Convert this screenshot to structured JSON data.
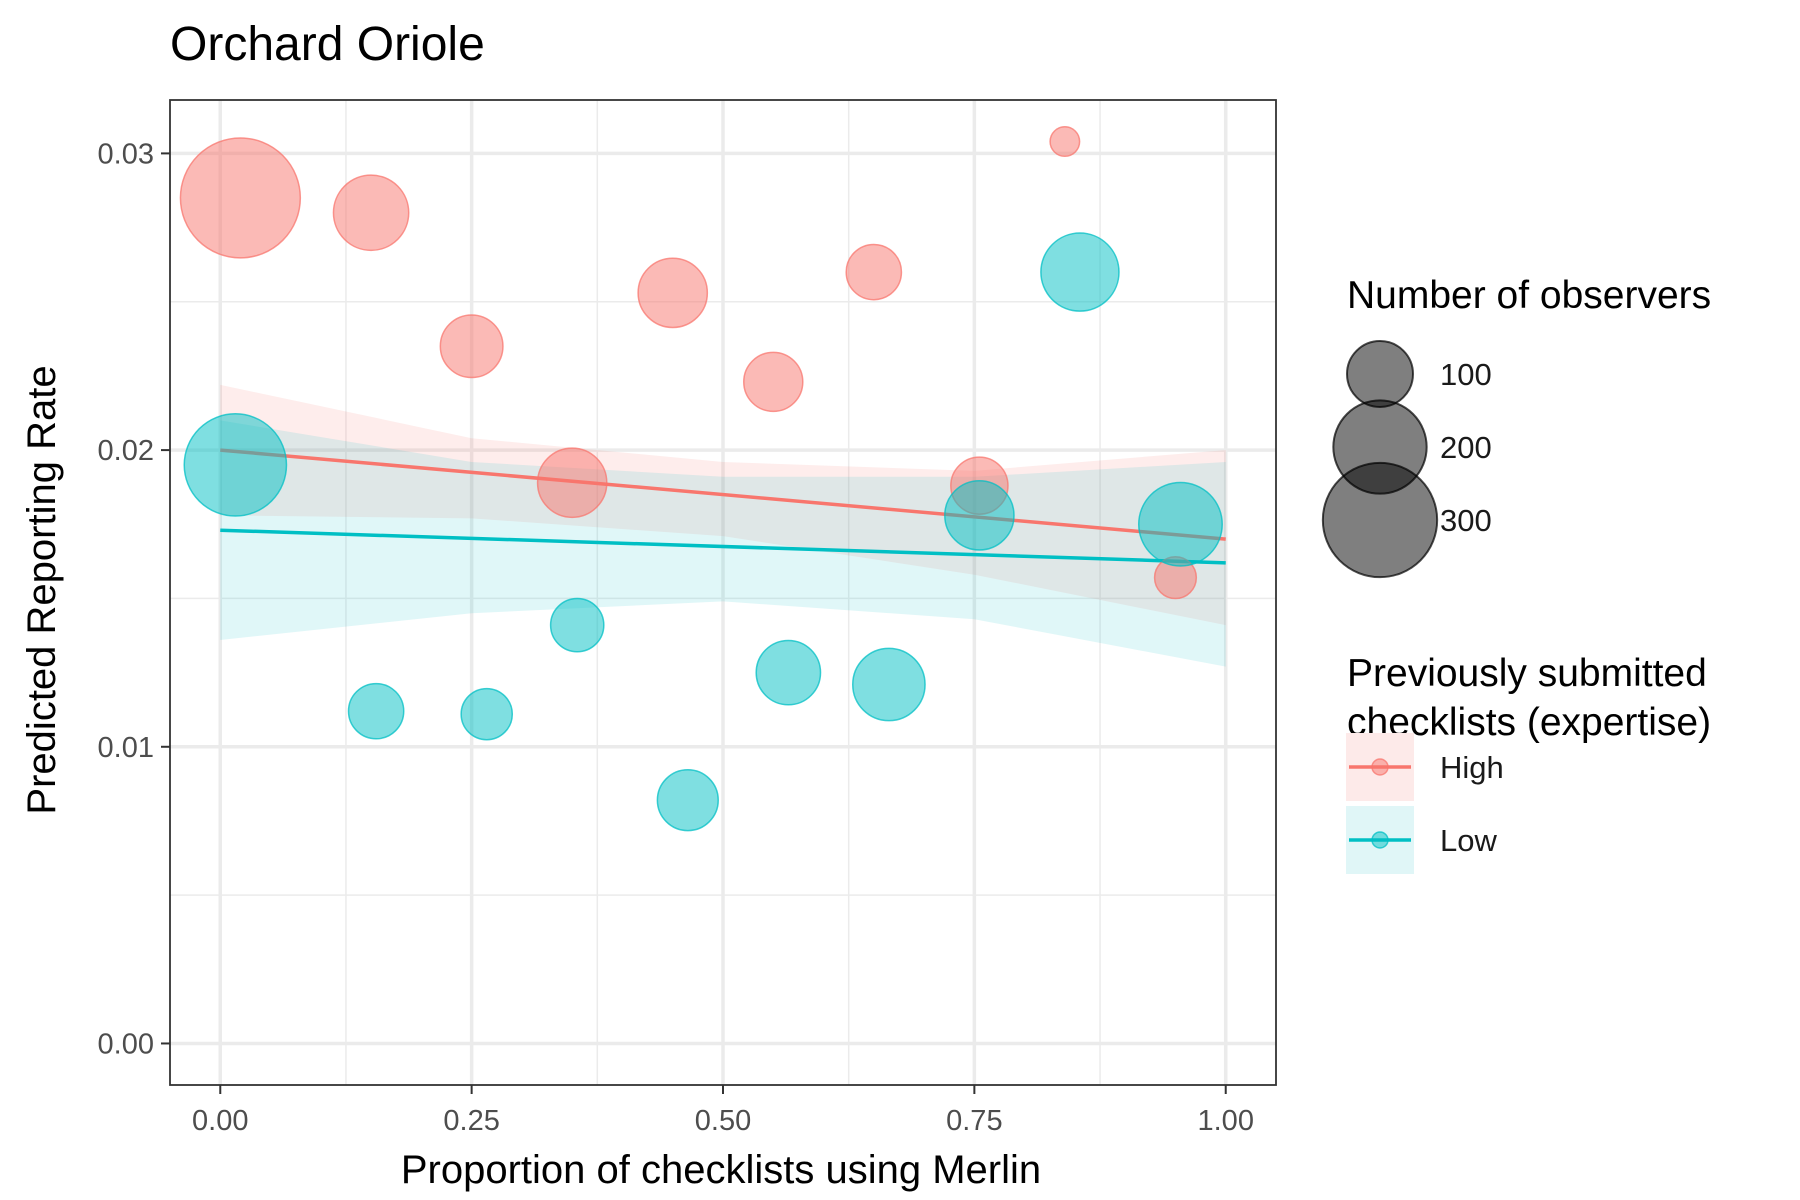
{
  "chart_data": {
    "type": "scatter",
    "title": "Orchard Oriole",
    "xlabel": "Proportion of checklists using Merlin",
    "ylabel": "Predicted Reporting Rate",
    "xlim": [
      -0.05,
      1.05
    ],
    "ylim": [
      -0.0014,
      0.0318
    ],
    "x_ticks": [
      0.0,
      0.25,
      0.5,
      0.75,
      1.0
    ],
    "x_tick_labels": [
      "0.00",
      "0.25",
      "0.50",
      "0.75",
      "1.00"
    ],
    "y_ticks": [
      0.0,
      0.01,
      0.02,
      0.03
    ],
    "y_tick_labels": [
      "0.00",
      "0.01",
      "0.02",
      "0.03"
    ],
    "grid": true,
    "legend_position": "right",
    "size_legend": {
      "title": "Number of observers",
      "entries": [
        {
          "label": "100",
          "value": 100
        },
        {
          "label": "200",
          "value": 200
        },
        {
          "label": "300",
          "value": 300
        }
      ]
    },
    "color_legend": {
      "title_lines": [
        "Previously submitted",
        "checklists (expertise)"
      ],
      "entries": [
        {
          "label": "High",
          "color": "#F8766D",
          "band_color": "#FDEAE9"
        },
        {
          "label": "Low",
          "color": "#00BFC4",
          "band_color": "#E0F6F7"
        }
      ]
    },
    "series": [
      {
        "name": "High",
        "color": "#F8766D",
        "points": [
          {
            "x": 0.02,
            "y": 0.0285,
            "observers": 330
          },
          {
            "x": 0.15,
            "y": 0.028,
            "observers": 130
          },
          {
            "x": 0.25,
            "y": 0.0235,
            "observers": 90
          },
          {
            "x": 0.35,
            "y": 0.0189,
            "observers": 110
          },
          {
            "x": 0.45,
            "y": 0.0253,
            "observers": 110
          },
          {
            "x": 0.55,
            "y": 0.0223,
            "observers": 80
          },
          {
            "x": 0.65,
            "y": 0.026,
            "observers": 70
          },
          {
            "x": 0.755,
            "y": 0.0188,
            "observers": 75
          },
          {
            "x": 0.84,
            "y": 0.0304,
            "observers": 20
          },
          {
            "x": 0.95,
            "y": 0.0157,
            "observers": 40
          }
        ],
        "fit": {
          "x": [
            0.0,
            1.0
          ],
          "y": [
            0.02,
            0.017
          ]
        },
        "ci": {
          "x": [
            0.0,
            0.25,
            0.5,
            0.75,
            1.0
          ],
          "lower": [
            0.0178,
            0.0177,
            0.0171,
            0.0158,
            0.0141
          ],
          "upper": [
            0.0222,
            0.0204,
            0.0196,
            0.0193,
            0.02
          ]
        }
      },
      {
        "name": "Low",
        "color": "#00BFC4",
        "points": [
          {
            "x": 0.015,
            "y": 0.0195,
            "observers": 240
          },
          {
            "x": 0.155,
            "y": 0.0112,
            "observers": 70
          },
          {
            "x": 0.265,
            "y": 0.0111,
            "observers": 60
          },
          {
            "x": 0.355,
            "y": 0.0141,
            "observers": 65
          },
          {
            "x": 0.465,
            "y": 0.0082,
            "observers": 85
          },
          {
            "x": 0.565,
            "y": 0.0125,
            "observers": 95
          },
          {
            "x": 0.665,
            "y": 0.0121,
            "observers": 120
          },
          {
            "x": 0.755,
            "y": 0.0178,
            "observers": 110
          },
          {
            "x": 0.855,
            "y": 0.026,
            "observers": 140
          },
          {
            "x": 0.955,
            "y": 0.0175,
            "observers": 160
          }
        ],
        "fit": {
          "x": [
            0.0,
            1.0
          ],
          "y": [
            0.0173,
            0.0162
          ]
        },
        "ci": {
          "x": [
            0.0,
            0.25,
            0.5,
            0.75,
            1.0
          ],
          "lower": [
            0.0136,
            0.0145,
            0.0149,
            0.0143,
            0.0127
          ],
          "upper": [
            0.021,
            0.0196,
            0.0191,
            0.0191,
            0.0196
          ]
        }
      }
    ]
  }
}
